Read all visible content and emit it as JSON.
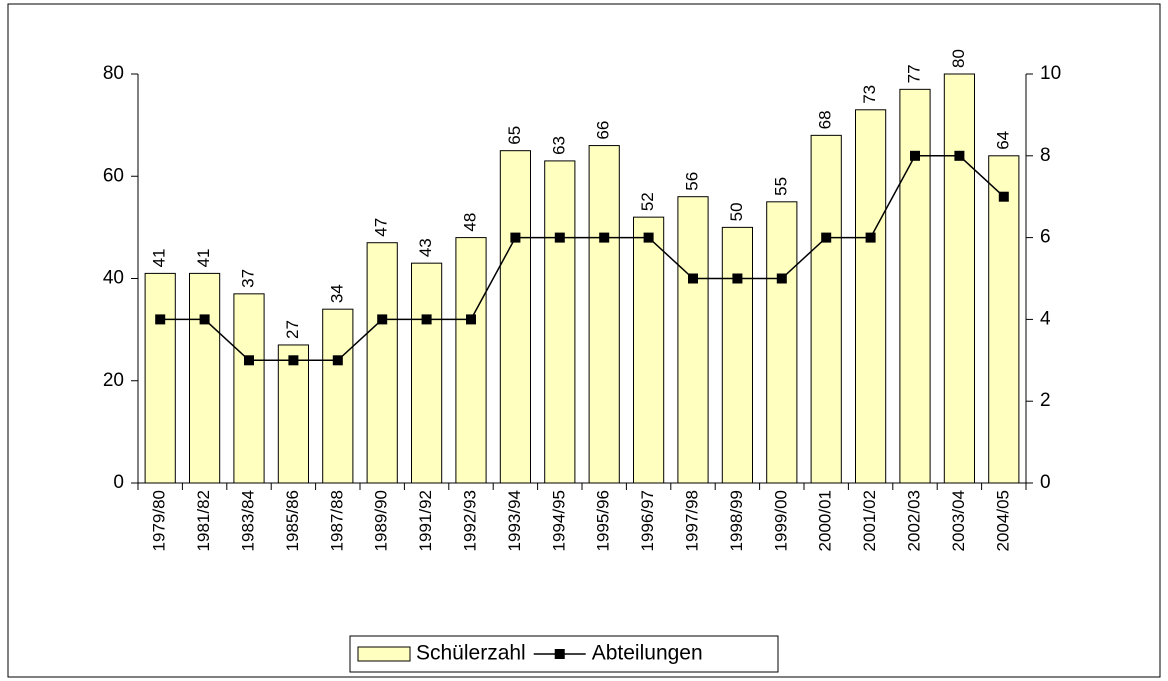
{
  "chart_data": {
    "type": "bar",
    "categories": [
      "1979/80",
      "1981/82",
      "1983/84",
      "1985/86",
      "1987/88",
      "1989/90",
      "1991/92",
      "1992/93",
      "1993/94",
      "1994/95",
      "1995/96",
      "1996/97",
      "1997/98",
      "1998/99",
      "1999/00",
      "2000/01",
      "2001/02",
      "2002/03",
      "2003/04",
      "2004/05"
    ],
    "series": [
      {
        "name": "Schülerzahl",
        "type": "bar",
        "color": "#ffffc0",
        "values": [
          41,
          41,
          37,
          27,
          34,
          47,
          43,
          48,
          65,
          63,
          66,
          52,
          56,
          50,
          55,
          68,
          73,
          77,
          80,
          64
        ]
      },
      {
        "name": "Abteilungen",
        "type": "line",
        "axis": "y2",
        "color": "#000000",
        "values": [
          4,
          4,
          3,
          3,
          3,
          4,
          4,
          4,
          6,
          6,
          6,
          6,
          5,
          5,
          5,
          6,
          6,
          8,
          8,
          7
        ]
      }
    ],
    "ylim": [
      0,
      80
    ],
    "yticks": [
      0,
      20,
      40,
      60,
      80
    ],
    "y2lim": [
      0,
      10
    ],
    "y2ticks": [
      0,
      2,
      4,
      6,
      8,
      10
    ],
    "data_labels": true,
    "legend": "bottom"
  }
}
